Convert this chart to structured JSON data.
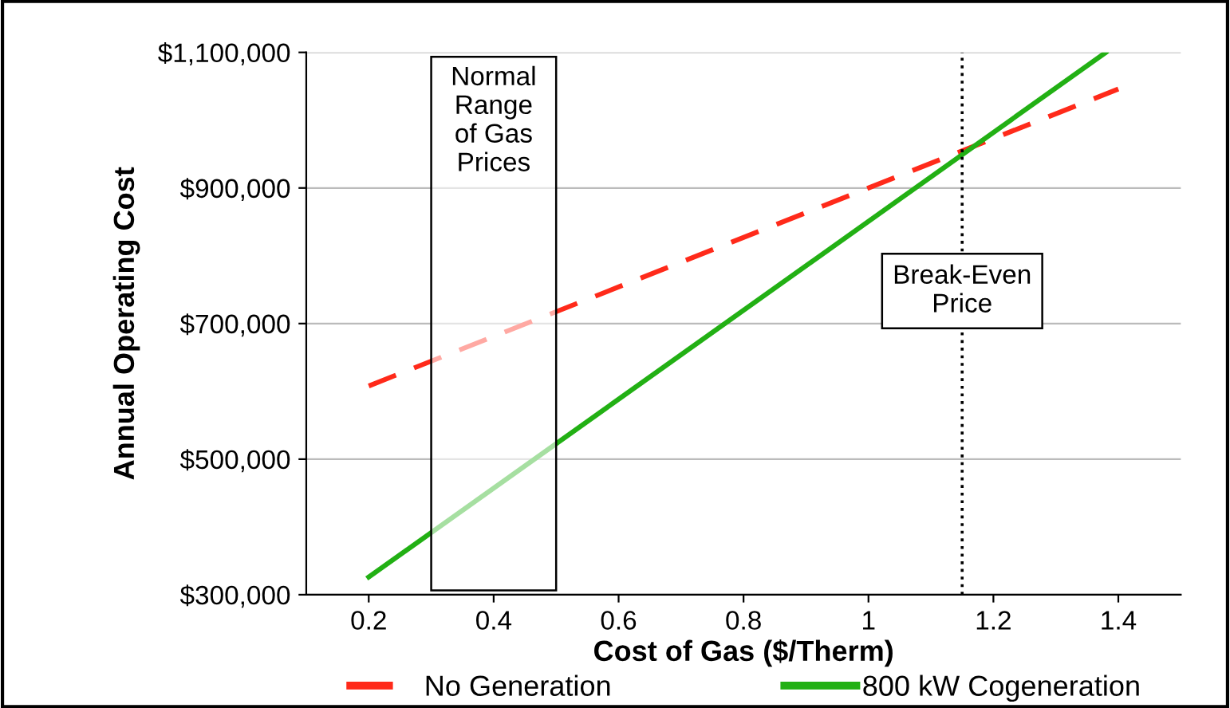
{
  "chart_data": {
    "type": "line",
    "xlabel": "Cost of Gas ($/Therm)",
    "ylabel": "Annual Operating Cost",
    "series": [
      {
        "name": "No Generation",
        "color": "#ff2a1a",
        "line_style": "dashed",
        "x": [
          0.2,
          1.4
        ],
        "values": [
          608000,
          1046000
        ]
      },
      {
        "name": "800 kW Cogeneration",
        "color": "#22b014",
        "line_style": "solid",
        "x": [
          0.2,
          1.38
        ],
        "values": [
          326000,
          1100000
        ]
      }
    ],
    "xlim": [
      0.1,
      1.5
    ],
    "xticks": [
      0.2,
      0.4,
      0.6,
      0.8,
      1,
      1.2,
      1.4
    ],
    "ylim": [
      300000,
      1100000
    ],
    "yticks": [
      {
        "value": 300000,
        "label": "$300,000"
      },
      {
        "value": 500000,
        "label": "$500,000"
      },
      {
        "value": 700000,
        "label": "$700,000"
      },
      {
        "value": 900000,
        "label": "$900,000"
      },
      {
        "value": 1100000,
        "label": "$1,100,000"
      }
    ],
    "grid": "y",
    "legend": "bottom",
    "marker": "none",
    "bands": [
      {
        "axis": "x",
        "from": 0.3,
        "to": 0.5,
        "label": "Normal\nRange\nof Gas\nPrices"
      }
    ],
    "ref_lines": [
      {
        "axis": "x",
        "value": 1.15,
        "label": "Break-Even\nPrice",
        "line_style": "dotted",
        "color": "#000000"
      }
    ]
  }
}
